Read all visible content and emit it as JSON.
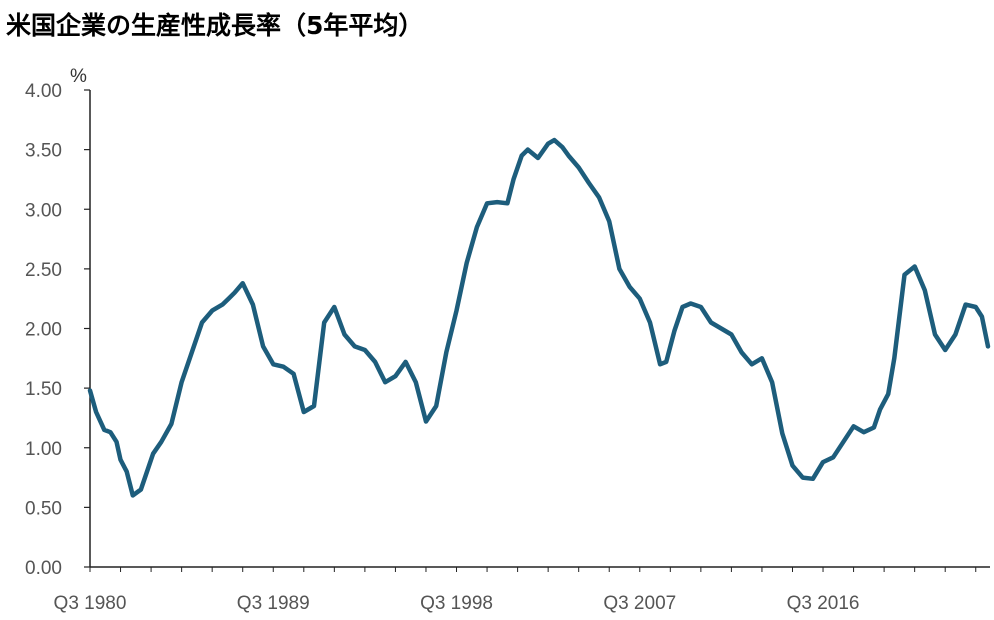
{
  "title": "米国企業の生産性成長率（5年平均）",
  "chart_data": {
    "type": "line",
    "title": "米国企業の生産性成長率（5年平均）",
    "ylabel": "%",
    "ylim": [
      0,
      4
    ],
    "yticks": [
      "0.00",
      "0.50",
      "1.00",
      "1.50",
      "2.00",
      "2.50",
      "3.00",
      "3.50",
      "4.00"
    ],
    "xticks": [
      "Q3 1980",
      "Q3 1989",
      "Q3 1998",
      "Q3 2007",
      "Q3 2016"
    ],
    "xrange": [
      1980.5,
      2024.75
    ],
    "series": [
      {
        "color": "#1d5d7c",
        "x": [
          1980.5,
          1980.8,
          1981.2,
          1981.5,
          1981.8,
          1982.0,
          1982.3,
          1982.6,
          1983.0,
          1983.3,
          1983.6,
          1984.0,
          1984.5,
          1985.0,
          1985.5,
          1986.0,
          1986.5,
          1987.0,
          1987.3,
          1987.6,
          1988.0,
          1988.5,
          1989.0,
          1989.5,
          1990.0,
          1990.5,
          1991.0,
          1991.5,
          1992.0,
          1992.5,
          1993.0,
          1993.5,
          1994.0,
          1994.5,
          1995.0,
          1995.5,
          1996.0,
          1996.5,
          1997.0,
          1997.5,
          1998.0,
          1998.5,
          1999.0,
          1999.5,
          2000.0,
          2000.5,
          2001.0,
          2001.3,
          2001.7,
          2002.0,
          2002.5,
          2003.0,
          2003.3,
          2003.7,
          2004.0,
          2004.5,
          2005.0,
          2005.5,
          2006.0,
          2006.5,
          2007.0,
          2007.5,
          2008.0,
          2008.5,
          2008.8,
          2009.2,
          2009.6,
          2010.0,
          2010.5,
          2011.0,
          2011.5,
          2012.0,
          2012.5,
          2013.0,
          2013.5,
          2014.0,
          2014.5,
          2015.0,
          2015.5,
          2016.0,
          2016.5,
          2017.0,
          2017.5,
          2018.0,
          2018.5,
          2019.0,
          2019.3,
          2019.7,
          2020.0,
          2020.5,
          2021.0,
          2021.5,
          2022.0,
          2022.5,
          2023.0,
          2023.5,
          2024.0,
          2024.3,
          2024.6
        ],
        "y": [
          1.48,
          1.3,
          1.15,
          1.13,
          1.05,
          0.9,
          0.8,
          0.6,
          0.65,
          0.8,
          0.95,
          1.05,
          1.2,
          1.55,
          1.8,
          2.05,
          2.15,
          2.2,
          2.25,
          2.3,
          2.38,
          2.2,
          1.85,
          1.7,
          1.68,
          1.62,
          1.3,
          1.35,
          2.05,
          2.18,
          1.95,
          1.85,
          1.82,
          1.72,
          1.55,
          1.6,
          1.72,
          1.55,
          1.22,
          1.35,
          1.8,
          2.15,
          2.55,
          2.85,
          3.05,
          3.06,
          3.05,
          3.25,
          3.45,
          3.5,
          3.43,
          3.55,
          3.58,
          3.52,
          3.45,
          3.35,
          3.22,
          3.1,
          2.9,
          2.5,
          2.35,
          2.25,
          2.05,
          1.7,
          1.72,
          1.98,
          2.18,
          2.21,
          2.18,
          2.05,
          2.0,
          1.95,
          1.8,
          1.7,
          1.75,
          1.55,
          1.12,
          0.85,
          0.75,
          0.74,
          0.88,
          0.92,
          1.05,
          1.18,
          1.13,
          1.17,
          1.32,
          1.45,
          1.75,
          2.45,
          2.52,
          2.32,
          1.95,
          1.82,
          1.95,
          2.2,
          2.18,
          2.1,
          1.85
        ]
      }
    ]
  }
}
